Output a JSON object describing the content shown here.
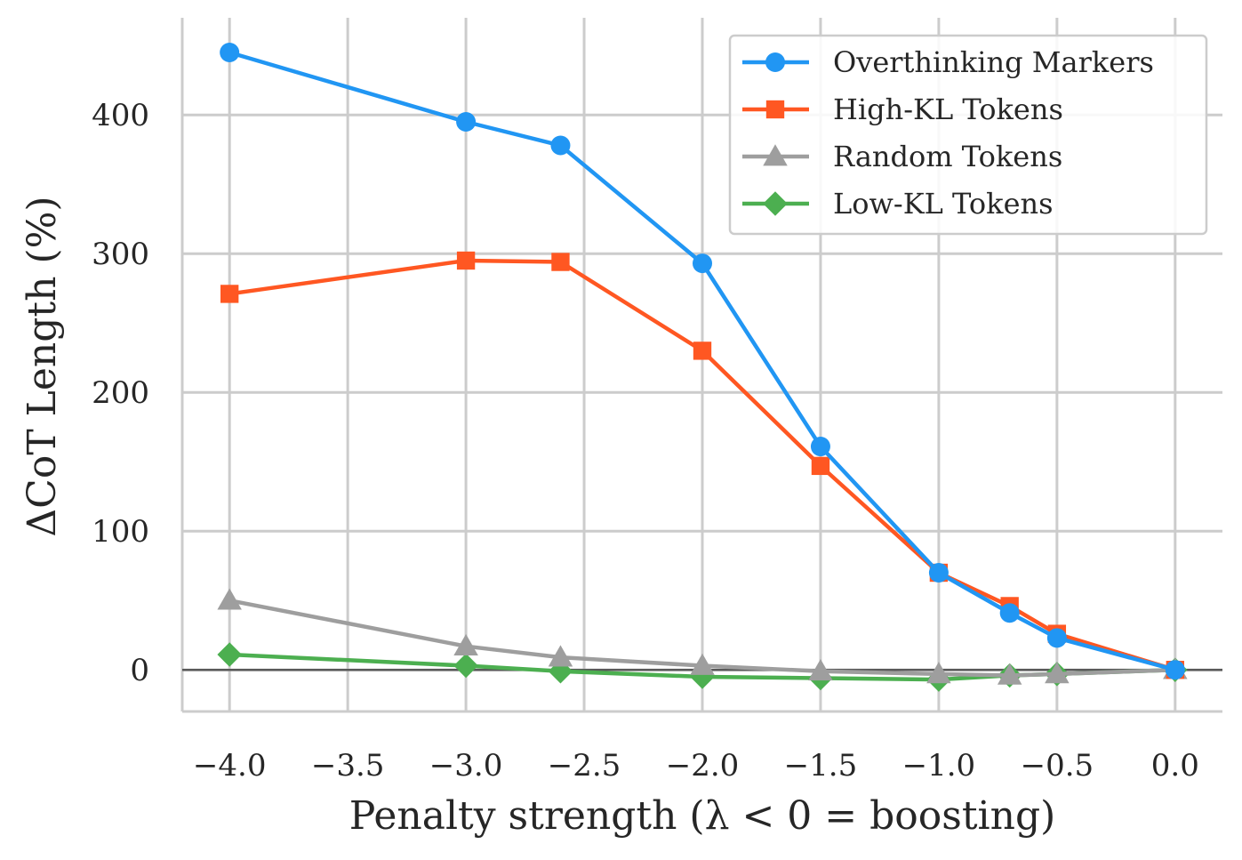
{
  "chart_data": {
    "type": "line",
    "title": "",
    "xlabel": "Penalty strength (λ < 0 = boosting)",
    "ylabel": "ΔCoT Length (%)",
    "xlim": [
      -4.2,
      0.2
    ],
    "ylim": [
      -30,
      470
    ],
    "xticks": [
      -4.0,
      -3.5,
      -3.0,
      -2.5,
      -2.0,
      -1.5,
      -1.0,
      -0.5,
      0.0
    ],
    "xtick_labels": [
      "−4.0",
      "−3.5",
      "−3.0",
      "−2.5",
      "−2.0",
      "−1.5",
      "−1.0",
      "−0.5",
      "0.0"
    ],
    "yticks": [
      0,
      100,
      200,
      300,
      400
    ],
    "ytick_labels": [
      "0",
      "100",
      "200",
      "300",
      "400"
    ],
    "grid": true,
    "zero_line": true,
    "legend_position": "top-right",
    "x": [
      -4.0,
      -3.0,
      -2.6,
      -2.0,
      -1.5,
      -1.0,
      -0.7,
      -0.5,
      0.0
    ],
    "series": [
      {
        "name": "Overthinking Markers",
        "color": "#2196f3",
        "marker": "circle",
        "values": [
          445,
          395,
          378,
          293,
          161,
          70,
          41,
          23,
          0
        ]
      },
      {
        "name": "High-KL Tokens",
        "color": "#ff5722",
        "marker": "square",
        "values": [
          271,
          295,
          294,
          230,
          147,
          70,
          46,
          26,
          0
        ]
      },
      {
        "name": "Random Tokens",
        "color": "#9e9e9e",
        "marker": "triangle",
        "values": [
          50,
          17,
          9,
          3,
          -1,
          -3,
          -4,
          -3,
          0
        ]
      },
      {
        "name": "Low-KL Tokens",
        "color": "#4caf50",
        "marker": "diamond",
        "values": [
          11,
          3,
          -1,
          -5,
          -6,
          -7,
          -4,
          -3,
          0
        ]
      }
    ]
  }
}
